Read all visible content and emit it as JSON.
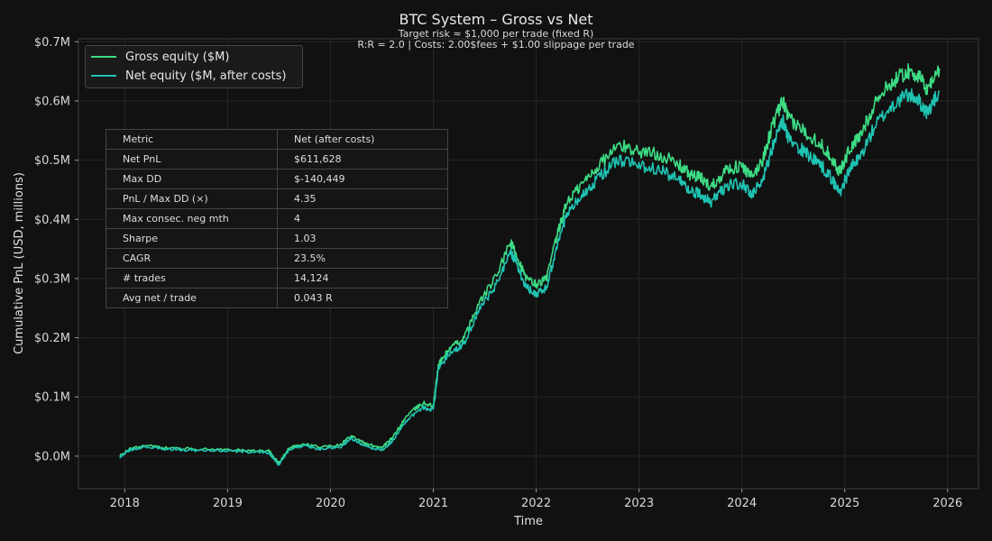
{
  "chart_data": {
    "type": "line",
    "title": "BTC System – Gross vs Net",
    "subtitle_lines": [
      "Target risk ≈ $1,000 per trade (fixed R)",
      "R:R = 2.0   |   Costs: 2.00$fees + $1.00 slippage per trade"
    ],
    "xlabel": "Time",
    "ylabel": "Cumulative PnL (USD, millions)",
    "xlim": [
      2017.55,
      2026.3
    ],
    "ylim": [
      -0.055,
      0.705
    ],
    "x_ticks": [
      2018,
      2019,
      2020,
      2021,
      2022,
      2023,
      2024,
      2025,
      2026
    ],
    "x_tick_labels": [
      "2018",
      "2019",
      "2020",
      "2021",
      "2022",
      "2023",
      "2024",
      "2025",
      "2026"
    ],
    "y_ticks": [
      0.0,
      0.1,
      0.2,
      0.3,
      0.4,
      0.5,
      0.6,
      0.7
    ],
    "y_tick_labels": [
      "$0.0M",
      "$0.1M",
      "$0.2M",
      "$0.3M",
      "$0.4M",
      "$0.5M",
      "$0.6M",
      "$0.7M"
    ],
    "grid": true,
    "legend_position": "top-left",
    "series": [
      {
        "name": "Gross equity ($M)",
        "color": "#3ddc84",
        "points": [
          [
            2017.95,
            0.0
          ],
          [
            2018.05,
            0.012
          ],
          [
            2018.2,
            0.018
          ],
          [
            2018.4,
            0.014
          ],
          [
            2018.7,
            0.012
          ],
          [
            2019.0,
            0.011
          ],
          [
            2019.2,
            0.009
          ],
          [
            2019.4,
            0.009
          ],
          [
            2019.5,
            -0.012
          ],
          [
            2019.6,
            0.015
          ],
          [
            2019.75,
            0.02
          ],
          [
            2019.9,
            0.015
          ],
          [
            2020.1,
            0.02
          ],
          [
            2020.2,
            0.035
          ],
          [
            2020.35,
            0.02
          ],
          [
            2020.5,
            0.015
          ],
          [
            2020.6,
            0.03
          ],
          [
            2020.75,
            0.07
          ],
          [
            2020.9,
            0.09
          ],
          [
            2021.0,
            0.085
          ],
          [
            2021.05,
            0.155
          ],
          [
            2021.15,
            0.18
          ],
          [
            2021.3,
            0.2
          ],
          [
            2021.45,
            0.26
          ],
          [
            2021.6,
            0.3
          ],
          [
            2021.75,
            0.36
          ],
          [
            2021.8,
            0.345
          ],
          [
            2021.9,
            0.3
          ],
          [
            2022.0,
            0.29
          ],
          [
            2022.1,
            0.3
          ],
          [
            2022.2,
            0.37
          ],
          [
            2022.3,
            0.43
          ],
          [
            2022.45,
            0.46
          ],
          [
            2022.6,
            0.49
          ],
          [
            2022.8,
            0.525
          ],
          [
            2023.0,
            0.515
          ],
          [
            2023.2,
            0.51
          ],
          [
            2023.4,
            0.49
          ],
          [
            2023.5,
            0.475
          ],
          [
            2023.6,
            0.47
          ],
          [
            2023.7,
            0.455
          ],
          [
            2023.85,
            0.485
          ],
          [
            2024.0,
            0.49
          ],
          [
            2024.1,
            0.47
          ],
          [
            2024.2,
            0.5
          ],
          [
            2024.3,
            0.56
          ],
          [
            2024.4,
            0.6
          ],
          [
            2024.45,
            0.57
          ],
          [
            2024.6,
            0.55
          ],
          [
            2024.75,
            0.53
          ],
          [
            2024.85,
            0.51
          ],
          [
            2024.95,
            0.48
          ],
          [
            2025.05,
            0.52
          ],
          [
            2025.15,
            0.54
          ],
          [
            2025.3,
            0.6
          ],
          [
            2025.45,
            0.63
          ],
          [
            2025.6,
            0.65
          ],
          [
            2025.7,
            0.645
          ],
          [
            2025.8,
            0.62
          ],
          [
            2025.92,
            0.655
          ]
        ]
      },
      {
        "name": "Net equity ($M, after costs)",
        "color": "#1fc3b2",
        "points": [
          [
            2017.95,
            -0.002
          ],
          [
            2018.05,
            0.01
          ],
          [
            2018.2,
            0.016
          ],
          [
            2018.4,
            0.012
          ],
          [
            2018.7,
            0.01
          ],
          [
            2019.0,
            0.009
          ],
          [
            2019.2,
            0.007
          ],
          [
            2019.4,
            0.006
          ],
          [
            2019.5,
            -0.015
          ],
          [
            2019.6,
            0.012
          ],
          [
            2019.75,
            0.017
          ],
          [
            2019.9,
            0.012
          ],
          [
            2020.1,
            0.016
          ],
          [
            2020.2,
            0.03
          ],
          [
            2020.35,
            0.016
          ],
          [
            2020.5,
            0.01
          ],
          [
            2020.6,
            0.025
          ],
          [
            2020.75,
            0.063
          ],
          [
            2020.9,
            0.082
          ],
          [
            2021.0,
            0.078
          ],
          [
            2021.05,
            0.148
          ],
          [
            2021.15,
            0.172
          ],
          [
            2021.3,
            0.19
          ],
          [
            2021.45,
            0.248
          ],
          [
            2021.6,
            0.287
          ],
          [
            2021.75,
            0.345
          ],
          [
            2021.8,
            0.33
          ],
          [
            2021.9,
            0.285
          ],
          [
            2022.0,
            0.275
          ],
          [
            2022.1,
            0.285
          ],
          [
            2022.2,
            0.352
          ],
          [
            2022.3,
            0.41
          ],
          [
            2022.45,
            0.44
          ],
          [
            2022.6,
            0.47
          ],
          [
            2022.8,
            0.5
          ],
          [
            2023.0,
            0.49
          ],
          [
            2023.2,
            0.485
          ],
          [
            2023.4,
            0.465
          ],
          [
            2023.5,
            0.448
          ],
          [
            2023.6,
            0.442
          ],
          [
            2023.7,
            0.428
          ],
          [
            2023.85,
            0.458
          ],
          [
            2024.0,
            0.46
          ],
          [
            2024.1,
            0.44
          ],
          [
            2024.2,
            0.468
          ],
          [
            2024.3,
            0.525
          ],
          [
            2024.4,
            0.565
          ],
          [
            2024.45,
            0.535
          ],
          [
            2024.6,
            0.515
          ],
          [
            2024.75,
            0.495
          ],
          [
            2024.85,
            0.475
          ],
          [
            2024.95,
            0.445
          ],
          [
            2025.05,
            0.485
          ],
          [
            2025.15,
            0.505
          ],
          [
            2025.3,
            0.56
          ],
          [
            2025.45,
            0.59
          ],
          [
            2025.6,
            0.61
          ],
          [
            2025.7,
            0.605
          ],
          [
            2025.8,
            0.58
          ],
          [
            2025.92,
            0.615
          ]
        ]
      }
    ],
    "table": {
      "header": [
        "Metric",
        "Net (after costs)"
      ],
      "rows": [
        [
          "Net PnL",
          "$611,628"
        ],
        [
          "Max DD",
          "$-140,449"
        ],
        [
          "PnL / Max DD (×)",
          "4.35"
        ],
        [
          "Max consec. neg mth",
          "4"
        ],
        [
          "Sharpe",
          "1.03"
        ],
        [
          "CAGR",
          "23.5%"
        ],
        [
          "# trades",
          "14,124"
        ],
        [
          "Avg net / trade",
          "0.043 R"
        ]
      ]
    }
  }
}
